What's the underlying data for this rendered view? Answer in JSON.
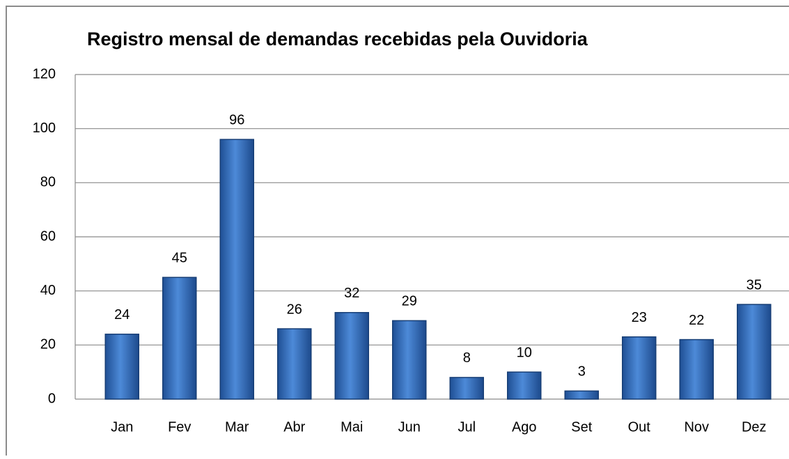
{
  "chart_data": {
    "type": "bar",
    "title": "Registro mensal de demandas recebidas pela Ouvidoria",
    "categories": [
      "Jan",
      "Fev",
      "Mar",
      "Abr",
      "Mai",
      "Jun",
      "Jul",
      "Ago",
      "Set",
      "Out",
      "Nov",
      "Dez"
    ],
    "values": [
      24,
      45,
      96,
      26,
      32,
      29,
      8,
      10,
      3,
      23,
      22,
      35
    ],
    "color": "#3a78c6",
    "ylim": [
      0,
      120
    ],
    "yticks": [
      0,
      20,
      40,
      60,
      80,
      100,
      120
    ],
    "grid": true
  }
}
